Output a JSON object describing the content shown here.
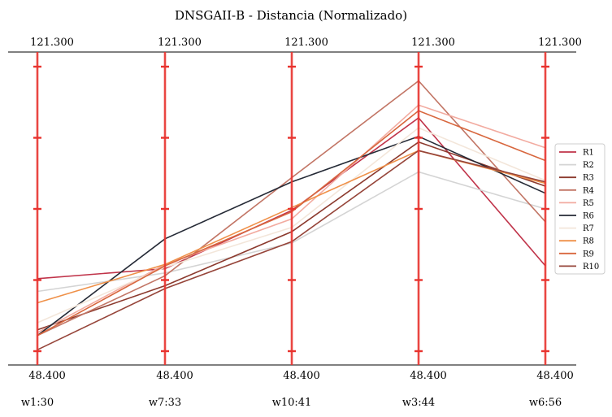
{
  "chart_data": {
    "type": "line",
    "title": "DNSGAII-B - Distancia (Normalizado)",
    "categories": [
      "w1:30",
      "w7:33",
      "w10:41",
      "w3:44",
      "w6:56"
    ],
    "axis_top_labels": [
      "121.300",
      "121.300",
      "121.300",
      "121.300",
      "121.300"
    ],
    "axis_bottom_labels": [
      "48.400",
      "48.400",
      "48.400",
      "48.400",
      "48.400"
    ],
    "ylim": [
      0,
      1
    ],
    "axis_color": "#e8332e",
    "legend_position": "right",
    "series": [
      {
        "name": "R1",
        "color": "#c0344a",
        "values": [
          0.255,
          0.29,
          0.495,
          0.82,
          0.3
        ]
      },
      {
        "name": "R2",
        "color": "#d4d4d4",
        "values": [
          0.21,
          0.275,
          0.38,
          0.63,
          0.5
        ]
      },
      {
        "name": "R3",
        "color": "#8c3a2e",
        "values": [
          0.075,
          0.23,
          0.42,
          0.735,
          0.58
        ]
      },
      {
        "name": "R4",
        "color": "#c27565",
        "values": [
          0.055,
          0.265,
          0.61,
          0.95,
          0.455
        ]
      },
      {
        "name": "R5",
        "color": "#f2aba0",
        "values": [
          0.065,
          0.305,
          0.465,
          0.865,
          0.715
        ]
      },
      {
        "name": "R6",
        "color": "#252a36",
        "values": [
          0.055,
          0.395,
          0.595,
          0.755,
          0.555
        ]
      },
      {
        "name": "R7",
        "color": "#f3e6da",
        "values": [
          0.1,
          0.295,
          0.435,
          0.785,
          0.6
        ]
      },
      {
        "name": "R8",
        "color": "#ef9048",
        "values": [
          0.17,
          0.305,
          0.505,
          0.705,
          0.59
        ]
      },
      {
        "name": "R9",
        "color": "#d8673e",
        "values": [
          0.055,
          0.3,
          0.49,
          0.845,
          0.67
        ]
      },
      {
        "name": "R10",
        "color": "#96453a",
        "values": [
          0.005,
          0.22,
          0.385,
          0.705,
          0.595
        ]
      }
    ]
  }
}
